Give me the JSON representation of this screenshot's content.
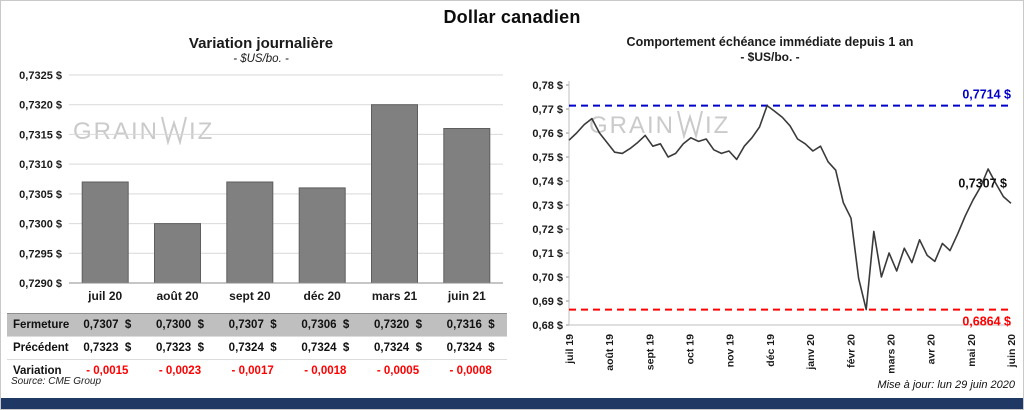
{
  "page": {
    "title": "Dollar canadien",
    "source": "Source: CME Group",
    "updated": "Mise à jour: lun 29 juin 2020",
    "footer_color": "#1F3864",
    "watermark": {
      "left": "GRAIN",
      "right": "IZ",
      "full": "GRAINWIZ"
    }
  },
  "table": {
    "rows": [
      {
        "label": "Fermeture",
        "values": [
          "0,7307  $",
          "0,7300  $",
          "0,7307  $",
          "0,7306  $",
          "0,7320  $",
          "0,7316  $"
        ]
      },
      {
        "label": "Précédent",
        "values": [
          "0,7323  $",
          "0,7323  $",
          "0,7324  $",
          "0,7324  $",
          "0,7324  $",
          "0,7324  $"
        ]
      },
      {
        "label": "Variation",
        "values": [
          "- 0,0015",
          "- 0,0023",
          "- 0,0017",
          "- 0,0018",
          "- 0,0005",
          "- 0,0008"
        ]
      }
    ]
  },
  "chart_data": [
    {
      "type": "bar",
      "title": "Variation  journalière",
      "subtitle": "- $US/bo. -",
      "categories": [
        "juil 20",
        "août 20",
        "sept 20",
        "déc 20",
        "mars 21",
        "juin 21"
      ],
      "values": [
        0.7307,
        0.73,
        0.7307,
        0.7306,
        0.732,
        0.7316
      ],
      "ylim": [
        0.729,
        0.7325
      ],
      "yticks": [
        "0,7325 $",
        "0,7320 $",
        "0,7315 $",
        "0,7310 $",
        "0,7305 $",
        "0,7300 $",
        "0,7295 $",
        "0,7290 $"
      ],
      "grid": true,
      "legend": "none",
      "bar_color": "#808080",
      "bar_border": "#5e5e5e"
    },
    {
      "type": "line",
      "title": "Comportement échéance immédiate depuis 1 an",
      "subtitle": "- $US/bo. -",
      "x_labels": [
        "juil 19",
        "août 19",
        "sept 19",
        "oct 19",
        "nov 19",
        "déc 19",
        "janv 20",
        "févr 20",
        "mars 20",
        "avr 20",
        "mai 20",
        "juin 20"
      ],
      "values": [
        0.757,
        0.76,
        0.7635,
        0.766,
        0.76,
        0.756,
        0.752,
        0.7515,
        0.7535,
        0.756,
        0.759,
        0.7545,
        0.7555,
        0.75,
        0.7515,
        0.7555,
        0.758,
        0.7565,
        0.7575,
        0.753,
        0.7515,
        0.7525,
        0.749,
        0.7545,
        0.758,
        0.7625,
        0.7714,
        0.769,
        0.7665,
        0.763,
        0.7575,
        0.7555,
        0.7525,
        0.7545,
        0.748,
        0.7445,
        0.731,
        0.7245,
        0.6995,
        0.6864,
        0.719,
        0.7,
        0.71,
        0.7025,
        0.712,
        0.706,
        0.7155,
        0.709,
        0.7065,
        0.714,
        0.711,
        0.718,
        0.7255,
        0.732,
        0.7375,
        0.745,
        0.739,
        0.7335,
        0.7307
      ],
      "ylim": [
        0.68,
        0.78
      ],
      "yticks": [
        "0,78 $",
        "0,77 $",
        "0,76 $",
        "0,75 $",
        "0,74 $",
        "0,73 $",
        "0,72 $",
        "0,71 $",
        "0,70 $",
        "0,69 $",
        "0,68 $"
      ],
      "grid": false,
      "legend": "none",
      "line_color": "#3a3a3a",
      "max_line": {
        "value": 0.7714,
        "label": "0,7714 $",
        "color": "#0000CC"
      },
      "min_line": {
        "value": 0.6864,
        "label": "0,6864 $",
        "color": "#FF0000"
      },
      "last_label": "0,7307 $"
    }
  ]
}
